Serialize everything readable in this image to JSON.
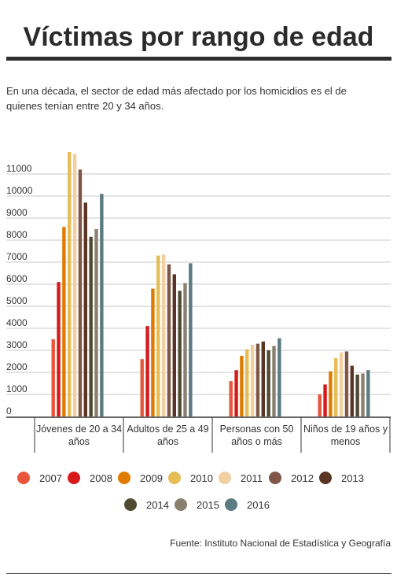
{
  "title": "Víctimas por rango de edad",
  "subtitle": "En una década, el sector de edad más afectado por los homicidios es el de quienes tenían entre 20 y 34 años.",
  "source": "Fuente: Instituto Nacional de Estadística y Geografía",
  "colors": {
    "2007": "#e8553a",
    "2008": "#d7191c",
    "2009": "#e07b00",
    "2010": "#e6bd55",
    "2011": "#f1cfa0",
    "2012": "#7e5748",
    "2013": "#5a3525",
    "2014": "#4f4a30",
    "2015": "#8a8070",
    "2016": "#5c7a82"
  },
  "chart_data": {
    "type": "bar",
    "title": "Víctimas por rango de edad",
    "xlabel": "",
    "ylabel": "",
    "ylim": [
      0,
      12000
    ],
    "yticks": [
      0,
      1000,
      2000,
      3000,
      4000,
      5000,
      6000,
      7000,
      8000,
      9000,
      10000,
      11000
    ],
    "grid": true,
    "legend_position": "bottom",
    "categories": [
      "Jóvenes de 20 a 34 años",
      "Adultos de 25 a 49 años",
      "Personas con 50 años o más",
      "Niños de 19 años y menos"
    ],
    "series": [
      {
        "name": "2007",
        "values": [
          3500,
          2600,
          1600,
          1000
        ]
      },
      {
        "name": "2008",
        "values": [
          6100,
          4100,
          2100,
          1450
        ]
      },
      {
        "name": "2009",
        "values": [
          8600,
          5800,
          2750,
          2050
        ]
      },
      {
        "name": "2010",
        "values": [
          12000,
          7300,
          3050,
          2650
        ]
      },
      {
        "name": "2011",
        "values": [
          11900,
          7350,
          3250,
          2900
        ]
      },
      {
        "name": "2012",
        "values": [
          11200,
          6900,
          3300,
          2950
        ]
      },
      {
        "name": "2013",
        "values": [
          9700,
          6450,
          3400,
          2300
        ]
      },
      {
        "name": "2014",
        "values": [
          8150,
          5700,
          3000,
          1900
        ]
      },
      {
        "name": "2015",
        "values": [
          8500,
          6050,
          3200,
          1950
        ]
      },
      {
        "name": "2016",
        "values": [
          10100,
          6950,
          3550,
          2100
        ]
      }
    ]
  }
}
